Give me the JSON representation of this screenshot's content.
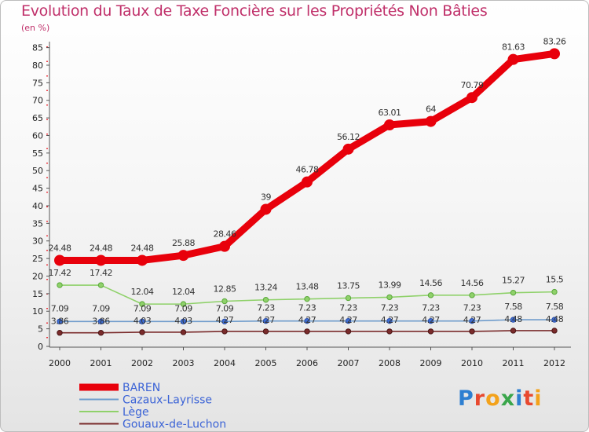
{
  "title": "Evolution du Taux de Taxe Foncière sur les Propriétés Non Bâties",
  "unit": "(en %)",
  "logo": {
    "letters": [
      "P",
      "r",
      "o",
      "x",
      "i",
      "t",
      "i"
    ],
    "colors": [
      "#2e7fd1",
      "#e8492f",
      "#f3a21b",
      "#3aa64b",
      "#2e7fd1",
      "#e8492f",
      "#f3a21b"
    ]
  },
  "chart_data": {
    "type": "line",
    "title": "Evolution du Taux de Taxe Foncière sur les Propriétés Non Bâties",
    "ylabel": "(en %)",
    "xlabel": "",
    "ylim": [
      0,
      85
    ],
    "yticks": [
      0,
      5,
      10,
      15,
      20,
      25,
      30,
      35,
      40,
      45,
      50,
      55,
      60,
      65,
      70,
      75,
      80,
      85
    ],
    "categories": [
      "2000",
      "2001",
      "2002",
      "2003",
      "2004",
      "2005",
      "2006",
      "2007",
      "2008",
      "2009",
      "2010",
      "2011",
      "2012"
    ],
    "series": [
      {
        "name": "BAREN",
        "color": "#e8000b",
        "values": [
          24.48,
          24.48,
          24.48,
          25.88,
          28.46,
          39,
          46.78,
          56.12,
          63.01,
          64,
          70.79,
          81.63,
          83.26
        ],
        "labels": [
          "24.48",
          "24.48",
          "24.48",
          "25.88",
          "28.46",
          "39",
          "46.78",
          "56.12",
          "63.01",
          "64",
          "70.79",
          "81.63",
          "83.26"
        ]
      },
      {
        "name": "Cazaux-Layrisse",
        "color": "#6f9ccc",
        "values": [
          7.09,
          7.09,
          7.09,
          7.09,
          7.09,
          7.23,
          7.23,
          7.23,
          7.23,
          7.23,
          7.23,
          7.58,
          7.58
        ],
        "labels": [
          "7.09",
          "7.09",
          "7.09",
          "7.09",
          "7.09",
          "7.23",
          "7.23",
          "7.23",
          "7.23",
          "7.23",
          "7.23",
          "7.58",
          "7.58"
        ]
      },
      {
        "name": "Lège",
        "color": "#8fd16a",
        "values": [
          17.42,
          17.42,
          12.04,
          12.04,
          12.85,
          13.24,
          13.48,
          13.75,
          13.99,
          14.56,
          14.56,
          15.27,
          15.5
        ],
        "labels": [
          "17.42",
          "17.42",
          "12.04",
          "12.04",
          "12.85",
          "13.24",
          "13.48",
          "13.75",
          "13.99",
          "14.56",
          "14.56",
          "15.27",
          "15.5"
        ]
      },
      {
        "name": "Gouaux-de-Luchon",
        "color": "#7a2b2b",
        "values": [
          3.86,
          3.86,
          4.03,
          4.03,
          4.27,
          4.27,
          4.27,
          4.27,
          4.27,
          4.27,
          4.27,
          4.48,
          4.48
        ],
        "labels": [
          "3.86",
          "3.86",
          "4.03",
          "4.03",
          "4.27",
          "4.27",
          "4.27",
          "4.27",
          "4.27",
          "4.27",
          "4.27",
          "4.48",
          "4.48"
        ]
      }
    ],
    "legend": [
      "BAREN",
      "Cazaux-Layrisse",
      "Lège",
      "Gouaux-de-Luchon"
    ],
    "legend_position": "bottom-left",
    "grid": false
  }
}
